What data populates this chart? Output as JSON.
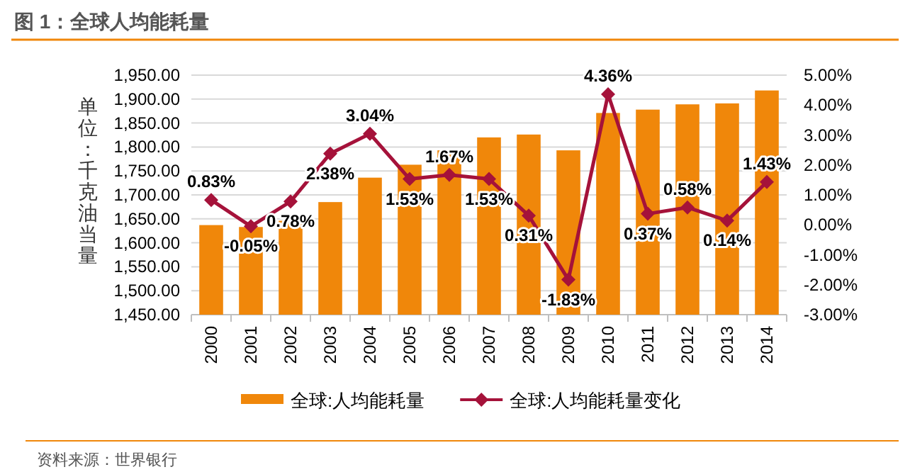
{
  "chart_data": {
    "type": "bar",
    "title": "图 1：全球人均能耗量",
    "ylabel": "单位：千克油当量",
    "categories": [
      "2000",
      "2001",
      "2002",
      "2003",
      "2004",
      "2005",
      "2006",
      "2007",
      "2008",
      "2009",
      "2010",
      "2011",
      "2012",
      "2013",
      "2014"
    ],
    "series": [
      {
        "name": "全球:人均能耗量",
        "color": "#f0870a",
        "values": [
          1637,
          1633,
          1646,
          1685,
          1736,
          1763,
          1793,
          1820,
          1826,
          1793,
          1871,
          1878,
          1889,
          1891,
          1918
        ]
      },
      {
        "name": "全球:人均能耗量变化",
        "type": "line",
        "axis": "y2",
        "color": "#a5123a",
        "marker": "diamond",
        "values": [
          0.83,
          -0.05,
          0.78,
          2.38,
          3.04,
          1.53,
          1.67,
          1.53,
          0.31,
          -1.83,
          4.36,
          0.37,
          0.58,
          0.14,
          1.43
        ],
        "value_labels": [
          "0.83%",
          "-0.05%",
          "0.78%",
          "2.38%",
          "3.04%",
          "1.53%",
          "1.67%",
          "1.53%",
          "0.31%",
          "-1.83%",
          "4.36%",
          "0.37%",
          "0.58%",
          "0.14%",
          "1.43%"
        ]
      }
    ],
    "ylim": [
      1450,
      1950
    ],
    "yticks": [
      {
        "value": 1450,
        "label": "1,450.00"
      },
      {
        "value": 1500,
        "label": "1,500.00"
      },
      {
        "value": 1550,
        "label": "1,550.00"
      },
      {
        "value": 1600,
        "label": "1,600.00"
      },
      {
        "value": 1650,
        "label": "1,650.00"
      },
      {
        "value": 1700,
        "label": "1,700.00"
      },
      {
        "value": 1750,
        "label": "1,750.00"
      },
      {
        "value": 1800,
        "label": "1,800.00"
      },
      {
        "value": 1850,
        "label": "1,850.00"
      },
      {
        "value": 1900,
        "label": "1,900.00"
      },
      {
        "value": 1950,
        "label": "1,950.00"
      }
    ],
    "y2lim": [
      -3,
      5
    ],
    "y2ticks": [
      {
        "value": -3,
        "label": "-3.00%"
      },
      {
        "value": -2,
        "label": "-2.00%"
      },
      {
        "value": -1,
        "label": "-1.00%"
      },
      {
        "value": 0,
        "label": "0.00%"
      },
      {
        "value": 1,
        "label": "1.00%"
      },
      {
        "value": 2,
        "label": "2.00%"
      },
      {
        "value": 3,
        "label": "3.00%"
      },
      {
        "value": 4,
        "label": "4.00%"
      },
      {
        "value": 5,
        "label": "5.00%"
      }
    ],
    "grid": "y",
    "legend": "bottom",
    "line_style": "solid",
    "annotations": [
      "资料来源：世界银行"
    ]
  }
}
